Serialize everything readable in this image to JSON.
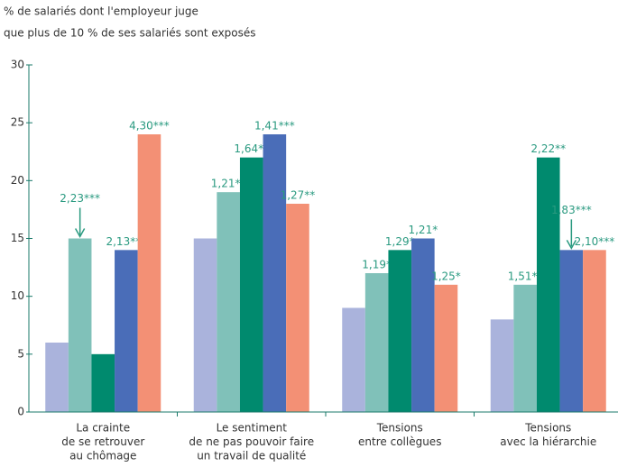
{
  "chart_data": {
    "type": "bar",
    "title": [
      "% de salariés dont l'employeur juge",
      "que plus de 10 % de ses salariés sont exposés"
    ],
    "categories": [
      [
        "La crainte",
        "de se retrouver",
        "au chômage"
      ],
      [
        "Le sentiment",
        "de ne pas pouvoir faire",
        "un travail de qualité"
      ],
      [
        "Tensions",
        "entre collègues"
      ],
      [
        "Tensions",
        "avec la hiérarchie"
      ]
    ],
    "series": [
      {
        "color": "#aab3dc",
        "values": [
          6,
          15,
          9,
          8
        ],
        "annotations": [
          null,
          null,
          null,
          null
        ],
        "arrows": [
          false,
          false,
          false,
          false
        ]
      },
      {
        "color": "#80c1b9",
        "values": [
          15,
          19,
          12,
          11
        ],
        "annotations": [
          "2,23***",
          "1,21**",
          "1,19*",
          "1,51**"
        ],
        "arrows": [
          true,
          false,
          false,
          false
        ]
      },
      {
        "color": "#008a6e",
        "values": [
          5,
          22,
          14,
          22
        ],
        "annotations": [
          null,
          "1,64**",
          "1,29*",
          "2,22**"
        ],
        "arrows": [
          false,
          false,
          false,
          false
        ]
      },
      {
        "color": "#4a6db8",
        "values": [
          14,
          24,
          15,
          14
        ],
        "annotations": [
          "2,13***",
          "1,41***",
          "1,21*",
          "1,83***"
        ],
        "arrows": [
          false,
          false,
          false,
          true
        ]
      },
      {
        "color": "#f39075",
        "values": [
          24,
          18,
          11,
          14
        ],
        "annotations": [
          "4,30***",
          "1,27**",
          "1,25*",
          "2,10***"
        ],
        "arrows": [
          false,
          false,
          false,
          false
        ]
      }
    ],
    "ylim": [
      0,
      30
    ],
    "yticks": [
      0,
      5,
      10,
      15,
      20,
      25,
      30
    ]
  }
}
